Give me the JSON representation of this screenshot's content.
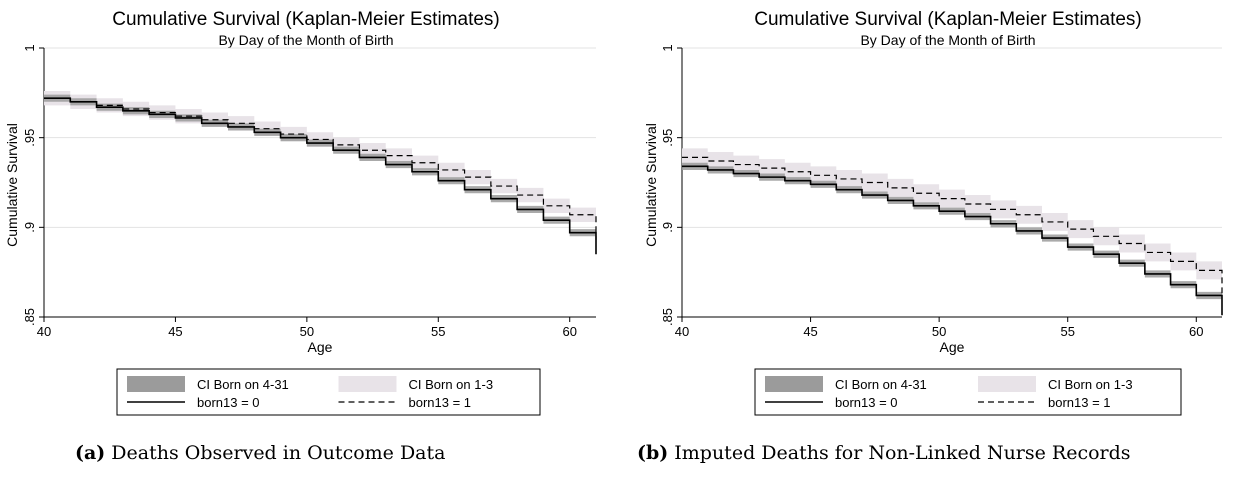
{
  "chart_data": [
    {
      "type": "line",
      "title": "Cumulative Survival (Kaplan-Meier Estimates)",
      "subtitle": "By Day of the Month of Birth",
      "xlabel": "Age",
      "ylabel": "Cumulative Survival",
      "xlim": [
        40,
        61
      ],
      "ylim": [
        0.85,
        1.0
      ],
      "xticks": [
        "40",
        "45",
        "50",
        "55",
        "60"
      ],
      "yticks": [
        ".85",
        ".9",
        ".95",
        "1"
      ],
      "grid": true,
      "legend_position": "bottom",
      "legend": [
        "CI Born on 4-31",
        "CI Born on 1-3",
        "born13 = 0",
        "born13 = 1"
      ],
      "caption_tag": "(a)",
      "caption_text": "Deaths Observed in Outcome Data",
      "series": [
        {
          "name": "born13 = 0",
          "style": "solid",
          "ci_color": "#9b9b9b",
          "x": [
            40,
            41,
            42,
            43,
            44,
            45,
            46,
            47,
            48,
            49,
            50,
            51,
            52,
            53,
            54,
            55,
            56,
            57,
            58,
            59,
            60,
            61
          ],
          "y": [
            0.972,
            0.97,
            0.967,
            0.965,
            0.963,
            0.961,
            0.958,
            0.956,
            0.953,
            0.95,
            0.947,
            0.943,
            0.939,
            0.935,
            0.931,
            0.926,
            0.921,
            0.916,
            0.91,
            0.904,
            0.897,
            0.889
          ],
          "ci": 0.002
        },
        {
          "name": "born13 = 1",
          "style": "dashed",
          "ci_color": "#e8e3e8",
          "x": [
            40,
            41,
            42,
            43,
            44,
            45,
            46,
            47,
            48,
            49,
            50,
            51,
            52,
            53,
            54,
            55,
            56,
            57,
            58,
            59,
            60,
            61
          ],
          "y": [
            0.972,
            0.97,
            0.968,
            0.966,
            0.964,
            0.962,
            0.96,
            0.958,
            0.955,
            0.952,
            0.949,
            0.946,
            0.943,
            0.94,
            0.936,
            0.932,
            0.928,
            0.923,
            0.918,
            0.912,
            0.907,
            0.901
          ],
          "ci": 0.004
        }
      ]
    },
    {
      "type": "line",
      "title": "Cumulative Survival (Kaplan-Meier Estimates)",
      "subtitle": "By Day of the Month of Birth",
      "xlabel": "Age",
      "ylabel": "Cumulative Survival",
      "xlim": [
        40,
        61
      ],
      "ylim": [
        0.85,
        1.0
      ],
      "xticks": [
        "40",
        "45",
        "50",
        "55",
        "60"
      ],
      "yticks": [
        ".85",
        ".9",
        ".95",
        "1"
      ],
      "grid": true,
      "legend_position": "bottom",
      "legend": [
        "CI Born on 4-31",
        "CI Born on 1-3",
        "born13 = 0",
        "born13 = 1"
      ],
      "caption_tag": "(b)",
      "caption_text": "Imputed Deaths for Non-Linked Nurse Records",
      "series": [
        {
          "name": "born13 = 0",
          "style": "solid",
          "ci_color": "#9b9b9b",
          "x": [
            40,
            41,
            42,
            43,
            44,
            45,
            46,
            47,
            48,
            49,
            50,
            51,
            52,
            53,
            54,
            55,
            56,
            57,
            58,
            59,
            60,
            61
          ],
          "y": [
            0.934,
            0.932,
            0.93,
            0.928,
            0.926,
            0.924,
            0.921,
            0.918,
            0.915,
            0.912,
            0.909,
            0.906,
            0.902,
            0.898,
            0.894,
            0.889,
            0.885,
            0.88,
            0.874,
            0.868,
            0.862,
            0.855
          ],
          "ci": 0.002
        },
        {
          "name": "born13 = 1",
          "style": "dashed",
          "ci_color": "#e8e3e8",
          "x": [
            40,
            41,
            42,
            43,
            44,
            45,
            46,
            47,
            48,
            49,
            50,
            51,
            52,
            53,
            54,
            55,
            56,
            57,
            58,
            59,
            60,
            61
          ],
          "y": [
            0.939,
            0.937,
            0.935,
            0.933,
            0.931,
            0.929,
            0.927,
            0.925,
            0.922,
            0.919,
            0.916,
            0.913,
            0.91,
            0.907,
            0.903,
            0.899,
            0.895,
            0.891,
            0.886,
            0.881,
            0.876,
            0.871
          ],
          "ci": 0.005
        }
      ]
    }
  ]
}
